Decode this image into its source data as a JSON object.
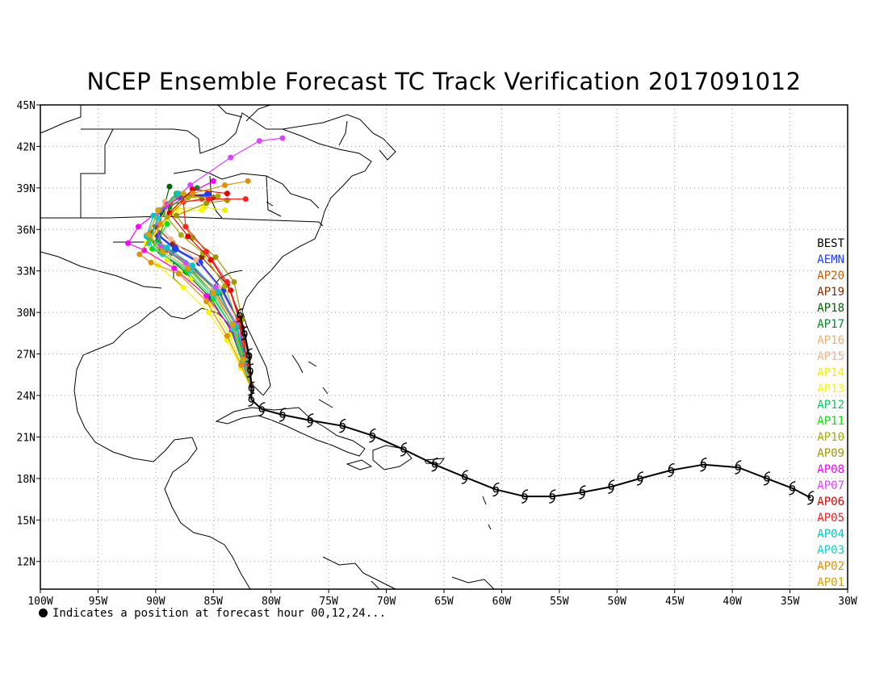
{
  "title": "NCEP Ensemble Forecast TC Track Verification 2017091012",
  "footnote": "Indicates a position at forecast hour 00,12,24...",
  "map": {
    "lon_range": [
      -100,
      -30
    ],
    "lat_range": [
      10,
      45
    ],
    "lon_ticks": [
      {
        "value": -100,
        "label": "100W"
      },
      {
        "value": -95,
        "label": "95W"
      },
      {
        "value": -90,
        "label": "90W"
      },
      {
        "value": -85,
        "label": "85W"
      },
      {
        "value": -80,
        "label": "80W"
      },
      {
        "value": -75,
        "label": "75W"
      },
      {
        "value": -70,
        "label": "70W"
      },
      {
        "value": -65,
        "label": "65W"
      },
      {
        "value": -60,
        "label": "60W"
      },
      {
        "value": -55,
        "label": "55W"
      },
      {
        "value": -50,
        "label": "50W"
      },
      {
        "value": -45,
        "label": "45W"
      },
      {
        "value": -40,
        "label": "40W"
      },
      {
        "value": -35,
        "label": "35W"
      },
      {
        "value": -30,
        "label": "30W"
      }
    ],
    "lat_ticks": [
      {
        "value": 12,
        "label": "12N"
      },
      {
        "value": 15,
        "label": "15N"
      },
      {
        "value": 18,
        "label": "18N"
      },
      {
        "value": 21,
        "label": "21N"
      },
      {
        "value": 24,
        "label": "24N"
      },
      {
        "value": 27,
        "label": "27N"
      },
      {
        "value": 30,
        "label": "30N"
      },
      {
        "value": 33,
        "label": "33N"
      },
      {
        "value": 36,
        "label": "36N"
      },
      {
        "value": 39,
        "label": "39N"
      },
      {
        "value": 42,
        "label": "42N"
      },
      {
        "value": 45,
        "label": "45N"
      }
    ],
    "grid": "dotted",
    "best_track_symbol": "hurricane symbol",
    "best_track": [
      [
        -33.2,
        16.6
      ],
      [
        -34.8,
        17.3
      ],
      [
        -37.0,
        18.0
      ],
      [
        -39.5,
        18.8
      ],
      [
        -42.5,
        19.0
      ],
      [
        -45.3,
        18.6
      ],
      [
        -48.0,
        18.0
      ],
      [
        -50.5,
        17.4
      ],
      [
        -53.0,
        17.0
      ],
      [
        -55.6,
        16.7
      ],
      [
        -58.0,
        16.7
      ],
      [
        -60.5,
        17.2
      ],
      [
        -63.2,
        18.1
      ],
      [
        -65.8,
        19.0
      ],
      [
        -68.5,
        20.1
      ],
      [
        -71.2,
        21.1
      ],
      [
        -73.8,
        21.8
      ],
      [
        -76.6,
        22.2
      ],
      [
        -79.0,
        22.6
      ],
      [
        -80.8,
        23.0
      ],
      [
        -81.7,
        23.7
      ],
      [
        -81.7,
        24.5
      ],
      [
        -81.8,
        25.8
      ],
      [
        -81.9,
        26.9
      ],
      [
        -82.3,
        28.5
      ],
      [
        -82.7,
        29.8
      ]
    ],
    "legend_position": "right"
  },
  "legend": [
    {
      "label": "BEST",
      "color": "#000000"
    },
    {
      "label": "AEMN",
      "color": "#1f3cff"
    },
    {
      "label": "AP20",
      "color": "#c85a00"
    },
    {
      "label": "AP19",
      "color": "#8b2b00"
    },
    {
      "label": "AP18",
      "color": "#006400"
    },
    {
      "label": "AP17",
      "color": "#008a22"
    },
    {
      "label": "AP16",
      "color": "#f0b070"
    },
    {
      "label": "AP15",
      "color": "#f4b48c"
    },
    {
      "label": "AP14",
      "color": "#f0f000"
    },
    {
      "label": "AP13",
      "color": "#f8f800"
    },
    {
      "label": "AP12",
      "color": "#00d060"
    },
    {
      "label": "AP11",
      "color": "#10e010"
    },
    {
      "label": "AP10",
      "color": "#a0b000"
    },
    {
      "label": "AP09",
      "color": "#9a9a00"
    },
    {
      "label": "AP08",
      "color": "#ff00ff"
    },
    {
      "label": "AP07",
      "color": "#e040ff"
    },
    {
      "label": "AP06",
      "color": "#e00000"
    },
    {
      "label": "AP05",
      "color": "#ff2020"
    },
    {
      "label": "AP04",
      "color": "#00c8c8"
    },
    {
      "label": "AP03",
      "color": "#10d0d0"
    },
    {
      "label": "AP02",
      "color": "#e09000"
    },
    {
      "label": "AP01",
      "color": "#d8a000"
    }
  ],
  "forecast_tracks": [
    {
      "member": "AEMN",
      "color": "#1f3cff",
      "points": [
        [
          -81.7,
          24.5
        ],
        [
          -82.2,
          26.8
        ],
        [
          -82.8,
          29.3
        ],
        [
          -84.2,
          31.6
        ],
        [
          -86.2,
          33.6
        ],
        [
          -88.3,
          34.6
        ],
        [
          -89.8,
          35.6
        ],
        [
          -89.5,
          37.3
        ],
        [
          -88.0,
          38.4
        ],
        [
          -85.5,
          38.5
        ]
      ]
    },
    {
      "member": "AP20",
      "color": "#c85a00",
      "points": [
        [
          -81.7,
          24.5
        ],
        [
          -82.3,
          26.5
        ],
        [
          -83.0,
          29.0
        ],
        [
          -84.8,
          31.5
        ],
        [
          -86.8,
          33.4
        ],
        [
          -89.0,
          34.5
        ],
        [
          -90.4,
          35.8
        ],
        [
          -88.8,
          37.8
        ],
        [
          -86.0,
          38.2
        ]
      ]
    },
    {
      "member": "AP19",
      "color": "#8b2b00",
      "points": [
        [
          -81.6,
          24.5
        ],
        [
          -82.0,
          26.9
        ],
        [
          -82.6,
          29.6
        ],
        [
          -83.8,
          32.0
        ],
        [
          -86.0,
          34.0
        ],
        [
          -88.5,
          35.0
        ],
        [
          -90.0,
          36.2
        ],
        [
          -88.2,
          38.6
        ],
        [
          -85.0,
          38.3
        ]
      ]
    },
    {
      "member": "AP18",
      "color": "#006400",
      "points": [
        [
          -81.7,
          24.5
        ],
        [
          -82.4,
          26.2
        ],
        [
          -83.4,
          28.6
        ],
        [
          -85.2,
          31.0
        ],
        [
          -87.4,
          32.9
        ],
        [
          -89.6,
          34.4
        ],
        [
          -90.6,
          35.4
        ],
        [
          -89.4,
          37.2
        ],
        [
          -88.8,
          39.1
        ]
      ]
    },
    {
      "member": "AP17",
      "color": "#008a22",
      "points": [
        [
          -81.7,
          24.5
        ],
        [
          -82.2,
          26.3
        ],
        [
          -83.0,
          28.9
        ],
        [
          -84.4,
          31.4
        ],
        [
          -86.6,
          33.0
        ],
        [
          -88.6,
          34.3
        ],
        [
          -89.8,
          35.2
        ],
        [
          -88.8,
          37.6
        ],
        [
          -86.4,
          39.0
        ]
      ]
    },
    {
      "member": "AP16",
      "color": "#f0b070",
      "points": [
        [
          -81.7,
          24.5
        ],
        [
          -82.5,
          26.6
        ],
        [
          -83.4,
          29.2
        ],
        [
          -85.0,
          31.7
        ],
        [
          -87.2,
          33.4
        ],
        [
          -89.4,
          34.8
        ],
        [
          -90.8,
          35.6
        ],
        [
          -89.2,
          38.0
        ]
      ]
    },
    {
      "member": "AP15",
      "color": "#f4b48c",
      "points": [
        [
          -81.7,
          24.5
        ],
        [
          -82.1,
          26.8
        ],
        [
          -82.9,
          29.4
        ],
        [
          -84.5,
          31.8
        ],
        [
          -86.5,
          33.8
        ],
        [
          -88.7,
          35.3
        ],
        [
          -89.8,
          36.5
        ],
        [
          -88.5,
          38.2
        ]
      ]
    },
    {
      "member": "AP14",
      "color": "#f0f000",
      "points": [
        [
          -81.7,
          24.5
        ],
        [
          -82.5,
          26.2
        ],
        [
          -83.6,
          28.4
        ],
        [
          -85.2,
          30.6
        ],
        [
          -87.0,
          32.4
        ],
        [
          -89.0,
          33.8
        ],
        [
          -90.5,
          35.2
        ],
        [
          -88.2,
          37.5
        ],
        [
          -85.8,
          37.6
        ],
        [
          -84.0,
          37.4
        ]
      ]
    },
    {
      "member": "AP13",
      "color": "#f8f800",
      "points": [
        [
          -81.7,
          24.5
        ],
        [
          -82.6,
          26.0
        ],
        [
          -83.8,
          28.0
        ],
        [
          -85.4,
          30.0
        ],
        [
          -87.6,
          31.8
        ],
        [
          -89.8,
          33.4
        ],
        [
          -90.8,
          35.0
        ],
        [
          -88.6,
          37.2
        ],
        [
          -86.0,
          37.4
        ]
      ]
    },
    {
      "member": "AP12",
      "color": "#00d060",
      "points": [
        [
          -81.7,
          24.5
        ],
        [
          -82.3,
          26.6
        ],
        [
          -83.2,
          29.0
        ],
        [
          -84.9,
          31.3
        ],
        [
          -87.0,
          33.2
        ],
        [
          -89.2,
          34.6
        ],
        [
          -90.5,
          35.3
        ],
        [
          -89.6,
          37.4
        ],
        [
          -88.2,
          38.6
        ]
      ]
    },
    {
      "member": "AP11",
      "color": "#10e010",
      "points": [
        [
          -81.7,
          24.5
        ],
        [
          -82.4,
          26.4
        ],
        [
          -83.3,
          28.8
        ],
        [
          -85.0,
          31.0
        ],
        [
          -87.3,
          33.0
        ],
        [
          -89.5,
          34.3
        ],
        [
          -90.3,
          34.6
        ],
        [
          -89.0,
          36.4
        ]
      ]
    },
    {
      "member": "AP10",
      "color": "#a0b000",
      "points": [
        [
          -81.7,
          24.5
        ],
        [
          -82.0,
          26.5
        ],
        [
          -82.8,
          29.1
        ],
        [
          -84.0,
          31.9
        ],
        [
          -85.9,
          34.3
        ],
        [
          -87.8,
          35.6
        ],
        [
          -89.0,
          36.9
        ],
        [
          -87.2,
          38.3
        ],
        [
          -84.6,
          38.4
        ]
      ]
    },
    {
      "member": "AP09",
      "color": "#9a9a00",
      "points": [
        [
          -81.7,
          24.5
        ],
        [
          -82.2,
          27.0
        ],
        [
          -82.5,
          29.5
        ],
        [
          -83.2,
          32.2
        ],
        [
          -84.8,
          34.0
        ],
        [
          -86.8,
          35.4
        ],
        [
          -88.2,
          37.0
        ],
        [
          -85.6,
          37.9
        ],
        [
          -83.8,
          38.1
        ]
      ]
    },
    {
      "member": "AP08",
      "color": "#ff00ff",
      "points": [
        [
          -81.7,
          24.5
        ],
        [
          -82.4,
          26.3
        ],
        [
          -83.4,
          28.8
        ],
        [
          -85.6,
          31.2
        ],
        [
          -88.4,
          33.2
        ],
        [
          -91.0,
          34.5
        ],
        [
          -92.4,
          35.0
        ],
        [
          -91.5,
          36.2
        ],
        [
          -89.0,
          37.8
        ],
        [
          -85.0,
          39.5
        ]
      ]
    },
    {
      "member": "AP07",
      "color": "#e040ff",
      "points": [
        [
          -81.7,
          24.5
        ],
        [
          -82.2,
          26.6
        ],
        [
          -83.0,
          29.2
        ],
        [
          -84.8,
          31.8
        ],
        [
          -87.4,
          33.6
        ],
        [
          -89.6,
          34.8
        ],
        [
          -90.0,
          37.0
        ],
        [
          -87.0,
          39.2
        ],
        [
          -83.5,
          41.2
        ],
        [
          -81.0,
          42.4
        ],
        [
          -79.0,
          42.6
        ]
      ]
    },
    {
      "member": "AP06",
      "color": "#e00000",
      "points": [
        [
          -81.7,
          24.5
        ],
        [
          -82.1,
          26.4
        ],
        [
          -82.5,
          28.9
        ],
        [
          -83.5,
          31.6
        ],
        [
          -85.2,
          33.8
        ],
        [
          -87.2,
          35.5
        ],
        [
          -88.8,
          37.2
        ],
        [
          -86.8,
          38.9
        ],
        [
          -83.8,
          38.6
        ]
      ]
    },
    {
      "member": "AP05",
      "color": "#ff2020",
      "points": [
        [
          -81.7,
          24.5
        ],
        [
          -82.3,
          26.8
        ],
        [
          -82.8,
          29.6
        ],
        [
          -83.8,
          32.2
        ],
        [
          -85.6,
          34.4
        ],
        [
          -87.4,
          36.2
        ],
        [
          -87.6,
          38.0
        ],
        [
          -85.4,
          38.2
        ],
        [
          -82.2,
          38.2
        ]
      ]
    },
    {
      "member": "AP04",
      "color": "#00c8c8",
      "points": [
        [
          -81.7,
          24.5
        ],
        [
          -82.2,
          26.5
        ],
        [
          -83.0,
          29.0
        ],
        [
          -84.6,
          31.5
        ],
        [
          -86.8,
          33.4
        ],
        [
          -89.0,
          34.7
        ],
        [
          -90.8,
          35.5
        ],
        [
          -90.2,
          37.0
        ],
        [
          -88.0,
          38.6
        ]
      ]
    },
    {
      "member": "AP03",
      "color": "#10d0d0",
      "points": [
        [
          -81.7,
          24.5
        ],
        [
          -82.5,
          26.4
        ],
        [
          -83.3,
          28.8
        ],
        [
          -85.0,
          31.2
        ],
        [
          -87.0,
          33.0
        ],
        [
          -89.4,
          34.2
        ],
        [
          -90.6,
          35.0
        ],
        [
          -89.8,
          36.8
        ]
      ]
    },
    {
      "member": "AP02",
      "color": "#e09000",
      "points": [
        [
          -81.7,
          24.5
        ],
        [
          -82.6,
          26.2
        ],
        [
          -83.8,
          28.3
        ],
        [
          -85.6,
          30.8
        ],
        [
          -88.0,
          32.8
        ],
        [
          -90.4,
          33.6
        ],
        [
          -91.4,
          34.2
        ],
        [
          -89.6,
          36.4
        ],
        [
          -86.8,
          38.6
        ],
        [
          -84.0,
          39.2
        ],
        [
          -82.0,
          39.5
        ]
      ]
    },
    {
      "member": "AP01",
      "color": "#d8a000",
      "points": [
        [
          -81.7,
          24.5
        ],
        [
          -82.4,
          26.6
        ],
        [
          -83.3,
          29.1
        ],
        [
          -85.0,
          31.4
        ],
        [
          -87.2,
          33.2
        ],
        [
          -89.4,
          34.4
        ],
        [
          -90.6,
          35.6
        ],
        [
          -89.8,
          37.4
        ],
        [
          -87.6,
          38.6
        ]
      ]
    }
  ]
}
